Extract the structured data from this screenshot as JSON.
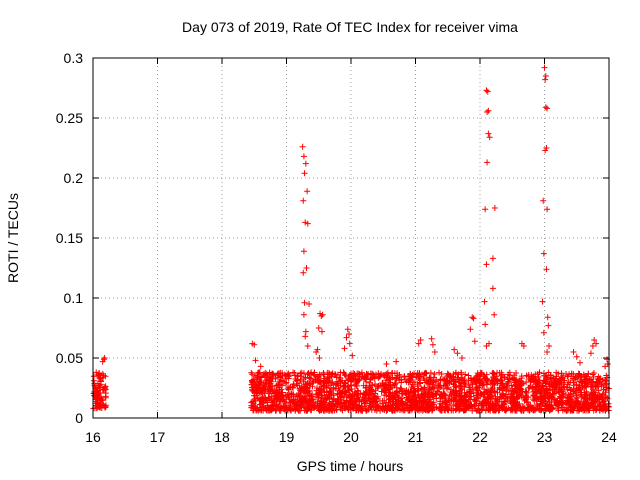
{
  "chart_data": {
    "type": "scatter",
    "title": "Day 073 of 2019, Rate Of TEC Index for receiver vima",
    "xlabel": "GPS time / hours",
    "ylabel": "ROTI / TECUs",
    "xlim": [
      16,
      24
    ],
    "ylim": [
      0,
      0.3
    ],
    "x_ticks": [
      16,
      17,
      18,
      19,
      20,
      21,
      22,
      23,
      24
    ],
    "x_tick_labels": [
      "16",
      "17",
      "18",
      "19",
      "20",
      "21",
      "22",
      "23",
      "24"
    ],
    "y_ticks": [
      0,
      0.05,
      0.1,
      0.15,
      0.2,
      0.25,
      0.3
    ],
    "y_tick_labels": [
      "0",
      "0.05",
      "0.1",
      "0.15",
      "0.2",
      "0.25",
      "0.3"
    ],
    "grid": true,
    "marker": "+",
    "series_color": "#ff0000",
    "series": [
      {
        "name": "ROTI",
        "baseline_segments": [
          {
            "x_start": 16.0,
            "x_end": 16.2,
            "y_min": 0.008,
            "y_max": 0.038
          },
          {
            "x_start": 18.45,
            "x_end": 24.0,
            "y_min": 0.006,
            "y_max": 0.038
          }
        ],
        "points": [
          [
            16.05,
            0.038
          ],
          [
            16.08,
            0.036
          ],
          [
            16.12,
            0.033
          ],
          [
            16.15,
            0.047
          ],
          [
            16.17,
            0.049
          ],
          [
            16.18,
            0.05
          ],
          [
            16.1,
            0.027
          ],
          [
            18.47,
            0.062
          ],
          [
            18.5,
            0.061
          ],
          [
            18.52,
            0.048
          ],
          [
            18.6,
            0.043
          ],
          [
            19.25,
            0.226
          ],
          [
            19.27,
            0.218
          ],
          [
            19.3,
            0.212
          ],
          [
            19.28,
            0.204
          ],
          [
            19.32,
            0.189
          ],
          [
            19.26,
            0.181
          ],
          [
            19.29,
            0.163
          ],
          [
            19.33,
            0.162
          ],
          [
            19.27,
            0.139
          ],
          [
            19.31,
            0.125
          ],
          [
            19.26,
            0.121
          ],
          [
            19.28,
            0.096
          ],
          [
            19.35,
            0.095
          ],
          [
            19.27,
            0.086
          ],
          [
            19.3,
            0.072
          ],
          [
            19.29,
            0.068
          ],
          [
            19.33,
            0.06
          ],
          [
            19.52,
            0.087
          ],
          [
            19.54,
            0.085
          ],
          [
            19.56,
            0.086
          ],
          [
            19.5,
            0.075
          ],
          [
            19.55,
            0.072
          ],
          [
            19.48,
            0.057
          ],
          [
            19.51,
            0.05
          ],
          [
            19.46,
            0.055
          ],
          [
            19.95,
            0.074
          ],
          [
            19.97,
            0.07
          ],
          [
            19.93,
            0.067
          ],
          [
            19.98,
            0.062
          ],
          [
            19.9,
            0.058
          ],
          [
            20.02,
            0.052
          ],
          [
            20.55,
            0.045
          ],
          [
            20.7,
            0.047
          ],
          [
            21.05,
            0.062
          ],
          [
            21.08,
            0.065
          ],
          [
            21.25,
            0.066
          ],
          [
            21.27,
            0.061
          ],
          [
            21.3,
            0.055
          ],
          [
            21.6,
            0.057
          ],
          [
            21.65,
            0.054
          ],
          [
            21.72,
            0.05
          ],
          [
            21.88,
            0.084
          ],
          [
            21.9,
            0.083
          ],
          [
            21.85,
            0.074
          ],
          [
            21.92,
            0.064
          ],
          [
            22.1,
            0.273
          ],
          [
            22.12,
            0.272
          ],
          [
            22.13,
            0.256
          ],
          [
            22.11,
            0.255
          ],
          [
            22.13,
            0.237
          ],
          [
            22.15,
            0.234
          ],
          [
            22.11,
            0.213
          ],
          [
            22.08,
            0.174
          ],
          [
            22.23,
            0.175
          ],
          [
            22.2,
            0.133
          ],
          [
            22.1,
            0.128
          ],
          [
            22.2,
            0.108
          ],
          [
            22.07,
            0.097
          ],
          [
            22.22,
            0.086
          ],
          [
            22.08,
            0.078
          ],
          [
            22.14,
            0.062
          ],
          [
            22.1,
            0.06
          ],
          [
            22.65,
            0.062
          ],
          [
            22.68,
            0.06
          ],
          [
            23.0,
            0.292
          ],
          [
            23.02,
            0.285
          ],
          [
            23.01,
            0.282
          ],
          [
            23.02,
            0.259
          ],
          [
            23.04,
            0.258
          ],
          [
            23.03,
            0.225
          ],
          [
            23.01,
            0.223
          ],
          [
            22.98,
            0.181
          ],
          [
            23.04,
            0.174
          ],
          [
            22.99,
            0.137
          ],
          [
            23.03,
            0.124
          ],
          [
            22.97,
            0.097
          ],
          [
            23.05,
            0.084
          ],
          [
            23.06,
            0.077
          ],
          [
            22.99,
            0.071
          ],
          [
            23.07,
            0.06
          ],
          [
            23.04,
            0.055
          ],
          [
            23.45,
            0.055
          ],
          [
            23.5,
            0.051
          ],
          [
            23.55,
            0.046
          ],
          [
            23.75,
            0.06
          ],
          [
            23.77,
            0.065
          ],
          [
            23.8,
            0.062
          ],
          [
            23.72,
            0.054
          ],
          [
            23.97,
            0.049
          ],
          [
            23.98,
            0.045
          ],
          [
            23.94,
            0.043
          ]
        ]
      }
    ]
  }
}
